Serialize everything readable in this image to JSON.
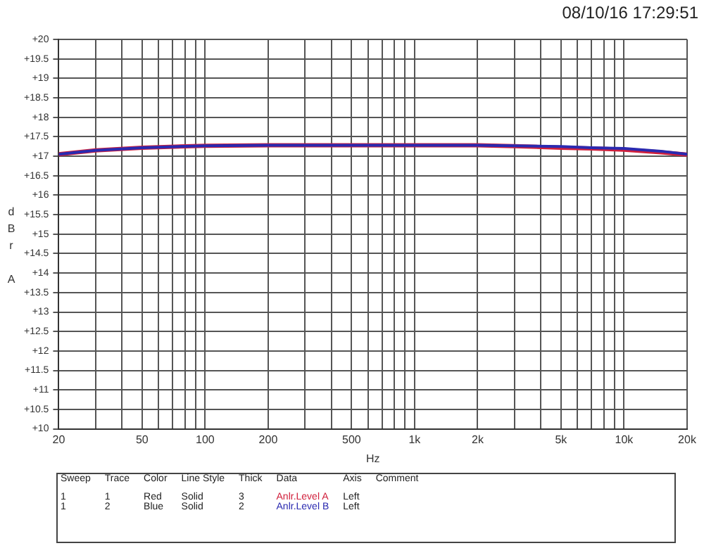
{
  "chart_data": {
    "type": "line",
    "title": "08/10/16 17:29:51",
    "xlabel": "Hz",
    "ylabel": "dBr A",
    "x": [
      20,
      30,
      50,
      100,
      200,
      500,
      1000,
      2000,
      3000,
      5000,
      7000,
      10000,
      15000,
      20000
    ],
    "series": [
      {
        "name": "Anlr.Level A",
        "color": "#d0203c",
        "values": [
          17.05,
          17.15,
          17.22,
          17.27,
          17.28,
          17.28,
          17.28,
          17.28,
          17.26,
          17.22,
          17.2,
          17.17,
          17.1,
          17.04
        ]
      },
      {
        "name": "Anlr.Level B",
        "color": "#2a2ab0",
        "values": [
          17.05,
          17.15,
          17.22,
          17.27,
          17.28,
          17.28,
          17.28,
          17.28,
          17.27,
          17.25,
          17.22,
          17.2,
          17.13,
          17.05
        ]
      }
    ],
    "log": "x",
    "grid": true,
    "legend": "bottom",
    "line_style": "solid",
    "marker": "none",
    "xlim": [
      20,
      20000
    ],
    "ylim": [
      10,
      20
    ],
    "xticks": [
      20,
      {
        "value": 30,
        "label": null
      },
      {
        "value": 40,
        "label": null
      },
      50,
      {
        "value": 60,
        "label": null
      },
      {
        "value": 70,
        "label": null
      },
      {
        "value": 80,
        "label": null
      },
      {
        "value": 90,
        "label": null
      },
      100,
      200,
      {
        "value": 300,
        "label": null
      },
      {
        "value": 400,
        "label": null
      },
      500,
      {
        "value": 600,
        "label": null
      },
      {
        "value": 700,
        "label": null
      },
      {
        "value": 800,
        "label": null
      },
      {
        "value": 900,
        "label": null
      },
      {
        "value": 1000,
        "label": "1k"
      },
      {
        "value": 2000,
        "label": "2k"
      },
      {
        "value": 3000,
        "label": null
      },
      {
        "value": 4000,
        "label": null
      },
      {
        "value": 5000,
        "label": "5k"
      },
      {
        "value": 6000,
        "label": null
      },
      {
        "value": 7000,
        "label": null
      },
      {
        "value": 8000,
        "label": null
      },
      {
        "value": 9000,
        "label": null
      },
      {
        "value": 10000,
        "label": "10k"
      },
      {
        "value": 20000,
        "label": "20k"
      }
    ],
    "yticks": [
      {
        "value": 10,
        "label": "+10"
      },
      {
        "value": 10.5,
        "label": "+10.5"
      },
      {
        "value": 11,
        "label": "+11"
      },
      {
        "value": 11.5,
        "label": "+11.5"
      },
      {
        "value": 12,
        "label": "+12"
      },
      {
        "value": 12.5,
        "label": "+12.5"
      },
      {
        "value": 13,
        "label": "+13"
      },
      {
        "value": 13.5,
        "label": "+13.5"
      },
      {
        "value": 14,
        "label": "+14"
      },
      {
        "value": 14.5,
        "label": "+14.5"
      },
      {
        "value": 15,
        "label": "+15"
      },
      {
        "value": 15.5,
        "label": "+15.5"
      },
      {
        "value": 16,
        "label": "+16"
      },
      {
        "value": 16.5,
        "label": "+16.5"
      },
      {
        "value": 17,
        "label": "+17"
      },
      {
        "value": 17.5,
        "label": "+17.5"
      },
      {
        "value": 18,
        "label": "+18"
      },
      {
        "value": 18.5,
        "label": "+18.5"
      },
      {
        "value": 19,
        "label": "+19"
      },
      {
        "value": 19.5,
        "label": "+19.5"
      },
      {
        "value": 20,
        "label": "+20"
      }
    ],
    "annotations": [
      "Sweep",
      "Trace",
      "Color",
      "Line Style",
      "Thick",
      "Data",
      "Axis",
      "Comment",
      "1",
      "1",
      "Red",
      "Solid",
      "3",
      "Left",
      "1",
      "2",
      "Blue",
      "Solid",
      "2",
      "Left"
    ]
  }
}
